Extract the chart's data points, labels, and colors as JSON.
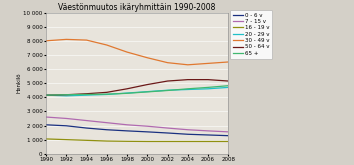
{
  "title": "Väestönmuutos ikäryhmittäin 1990-2008",
  "ylabel": "Henkilö",
  "years": [
    1990,
    1992,
    1994,
    1996,
    1998,
    2000,
    2002,
    2004,
    2006,
    2008
  ],
  "series_order": [
    "0 - 6 v",
    "7 - 15 v",
    "16 - 19 v",
    "20 - 29 v",
    "30 - 49 v",
    "50 - 64 v",
    "65 +"
  ],
  "series": {
    "0 - 6 v": [
      2050,
      1980,
      1820,
      1700,
      1620,
      1550,
      1470,
      1380,
      1330,
      1280
    ],
    "7 - 15 v": [
      2600,
      2500,
      2350,
      2200,
      2050,
      1950,
      1820,
      1700,
      1620,
      1550
    ],
    "16 - 19 v": [
      1050,
      1000,
      950,
      900,
      880,
      870,
      870,
      870,
      870,
      870
    ],
    "20 - 29 v": [
      4150,
      4100,
      4150,
      4200,
      4300,
      4400,
      4500,
      4550,
      4600,
      4700
    ],
    "30 - 49 v": [
      8000,
      8100,
      8050,
      7700,
      7200,
      6800,
      6450,
      6300,
      6400,
      6500
    ],
    "50 - 64 v": [
      4150,
      4180,
      4250,
      4350,
      4600,
      4900,
      5150,
      5250,
      5250,
      5150
    ],
    "65 +": [
      4150,
      4180,
      4200,
      4220,
      4280,
      4380,
      4480,
      4600,
      4700,
      4820
    ]
  },
  "colors": {
    "0 - 6 v": "#1a3080",
    "7 - 15 v": "#b06ab0",
    "16 - 19 v": "#909010",
    "20 - 29 v": "#20c0c8",
    "30 - 49 v": "#e07830",
    "50 - 64 v": "#6b1818",
    "65 +": "#40b870"
  },
  "ylim": [
    0,
    10000
  ],
  "yticks": [
    0,
    1000,
    2000,
    3000,
    4000,
    5000,
    6000,
    7000,
    8000,
    9000,
    10000
  ],
  "background_color": "#d4d0c8",
  "plot_bg_color": "#e8e4dc",
  "grid_color": "#ffffff",
  "title_fontsize": 5.5,
  "ylabel_fontsize": 4.0,
  "tick_fontsize": 4.0,
  "legend_fontsize": 4.0,
  "linewidth": 0.9
}
